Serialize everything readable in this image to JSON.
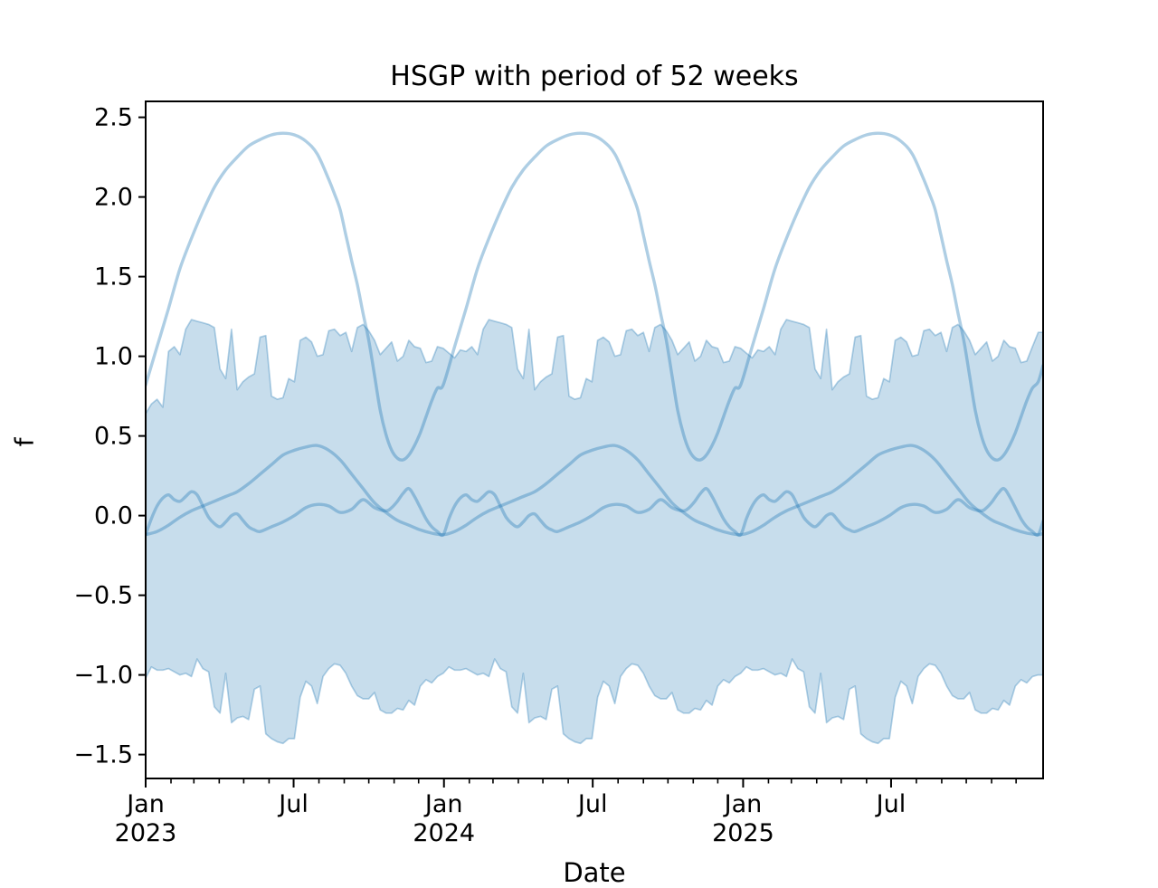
{
  "title": "HSGP with period of 52 weeks",
  "axes": {
    "xlabel": "Date",
    "ylabel": "f",
    "xlim_weeks": [
      0,
      156.86
    ],
    "ylim": [
      -1.65,
      2.6
    ],
    "grid": false,
    "legend": "none",
    "y_ticks": [
      {
        "value": 2.5,
        "label": "2.5"
      },
      {
        "value": 2.0,
        "label": "2.0"
      },
      {
        "value": 1.5,
        "label": "1.5"
      },
      {
        "value": 1.0,
        "label": "1.0"
      },
      {
        "value": 0.5,
        "label": "0.5"
      },
      {
        "value": 0.0,
        "label": "0.0"
      },
      {
        "value": -0.5,
        "label": "−0.5"
      },
      {
        "value": -1.0,
        "label": "−1.0"
      },
      {
        "value": -1.5,
        "label": "−1.5"
      }
    ],
    "x_major_ticks": [
      {
        "week": 0.0,
        "label": "Jan",
        "sublabel": "2023"
      },
      {
        "week": 25.86,
        "label": "Jul",
        "sublabel": ""
      },
      {
        "week": 52.14,
        "label": "Jan",
        "sublabel": "2024"
      },
      {
        "week": 78.14,
        "label": "Jul",
        "sublabel": ""
      },
      {
        "week": 104.43,
        "label": "Jan",
        "sublabel": "2025"
      },
      {
        "week": 130.29,
        "label": "Jul",
        "sublabel": ""
      }
    ],
    "x_minor_weeks": [
      4.43,
      8.43,
      12.86,
      17.14,
      21.57,
      30.29,
      34.71,
      39.0,
      43.43,
      47.71,
      56.57,
      60.71,
      65.14,
      69.43,
      73.86,
      82.57,
      87.0,
      91.29,
      95.71,
      100.0,
      108.86,
      112.86,
      117.29,
      121.57,
      126.0,
      134.71,
      139.14,
      143.43,
      147.86,
      152.14
    ]
  },
  "style": {
    "line_color": "#1f77b4",
    "line_alpha": 0.36,
    "line_width": 3.4,
    "band_fill_alpha": 0.25,
    "band_edge_alpha": 0.33,
    "band_edge_width": 1.7,
    "spine_color": "#000000",
    "spine_width": 2,
    "tick_color": "#000000",
    "text_color": "#000000",
    "background": "#ffffff"
  },
  "chart_data": {
    "type": "line",
    "title": "HSGP with period of 52 weeks",
    "xlabel": "Date",
    "ylabel": "f",
    "x_unit": "weeks_since_2023-01-01",
    "period_weeks": 52,
    "years": 3,
    "hdi_band": {
      "description": "weekly jagged credible-interval envelope, repeats yearly",
      "top_weeks_by_year": [
        [
          0.64,
          0.7,
          0.73,
          0.68,
          1.03,
          1.06,
          1.01,
          1.17,
          1.23,
          1.22,
          1.21,
          1.2,
          1.18,
          0.92,
          0.86,
          1.17,
          0.79,
          0.84,
          0.87,
          0.89,
          1.12,
          1.13,
          0.75,
          0.73,
          0.74,
          0.86,
          0.84,
          1.1,
          1.12,
          1.09,
          1.0,
          1.01,
          1.16,
          1.17,
          1.13,
          1.15,
          1.03,
          1.18,
          1.2,
          1.16,
          1.1,
          1.01,
          1.05,
          1.09,
          0.97,
          1.0,
          1.1,
          1.06,
          1.05,
          0.96,
          0.97,
          1.06
        ],
        [
          1.05,
          1.02,
          0.99,
          1.04,
          1.03,
          1.06,
          1.01,
          1.17,
          1.23,
          1.22,
          1.21,
          1.2,
          1.18,
          0.92,
          0.86,
          1.17,
          0.79,
          0.84,
          0.87,
          0.89,
          1.12,
          1.13,
          0.75,
          0.73,
          0.74,
          0.86,
          0.84,
          1.1,
          1.12,
          1.09,
          1.0,
          1.01,
          1.16,
          1.17,
          1.13,
          1.15,
          1.03,
          1.18,
          1.2,
          1.16,
          1.1,
          1.01,
          1.05,
          1.09,
          0.97,
          1.0,
          1.1,
          1.06,
          1.05,
          0.96,
          0.97,
          1.06
        ],
        [
          1.05,
          1.02,
          0.99,
          1.04,
          1.03,
          1.06,
          1.01,
          1.17,
          1.23,
          1.22,
          1.21,
          1.2,
          1.18,
          0.92,
          0.86,
          1.17,
          0.79,
          0.84,
          0.87,
          0.89,
          1.12,
          1.13,
          0.75,
          0.73,
          0.74,
          0.86,
          0.84,
          1.1,
          1.12,
          1.09,
          1.0,
          1.01,
          1.16,
          1.17,
          1.13,
          1.15,
          1.03,
          1.18,
          1.2,
          1.16,
          1.1,
          1.01,
          1.05,
          1.09,
          0.97,
          1.0,
          1.1,
          1.06,
          1.05,
          0.96,
          0.97,
          1.06,
          1.15
        ]
      ],
      "bottom_weeks_by_year": [
        [
          -1.02,
          -0.95,
          -0.97,
          -0.97,
          -0.96,
          -0.98,
          -1.0,
          -0.99,
          -1.01,
          -0.9,
          -0.96,
          -0.98,
          -1.2,
          -1.24,
          -0.99,
          -1.3,
          -1.27,
          -1.26,
          -1.28,
          -1.09,
          -1.07,
          -1.37,
          -1.4,
          -1.42,
          -1.43,
          -1.4,
          -1.4,
          -1.14,
          -1.04,
          -1.07,
          -1.18,
          -1.01,
          -0.96,
          -0.93,
          -0.94,
          -0.99,
          -1.07,
          -1.13,
          -1.15,
          -1.15,
          -1.11,
          -1.22,
          -1.24,
          -1.24,
          -1.21,
          -1.22,
          -1.16,
          -1.19,
          -1.07,
          -1.03,
          -1.05,
          -1.01
        ],
        [
          -0.99,
          -0.95,
          -0.97,
          -0.97,
          -0.96,
          -0.98,
          -1.0,
          -0.99,
          -1.01,
          -0.9,
          -0.96,
          -0.98,
          -1.2,
          -1.24,
          -0.99,
          -1.3,
          -1.27,
          -1.26,
          -1.28,
          -1.09,
          -1.07,
          -1.37,
          -1.4,
          -1.42,
          -1.43,
          -1.4,
          -1.4,
          -1.14,
          -1.04,
          -1.07,
          -1.18,
          -1.01,
          -0.96,
          -0.93,
          -0.94,
          -0.99,
          -1.07,
          -1.13,
          -1.15,
          -1.15,
          -1.11,
          -1.22,
          -1.24,
          -1.24,
          -1.21,
          -1.22,
          -1.16,
          -1.19,
          -1.07,
          -1.03,
          -1.05,
          -1.01
        ],
        [
          -0.99,
          -0.95,
          -0.97,
          -0.97,
          -0.96,
          -0.98,
          -1.0,
          -0.99,
          -1.01,
          -0.9,
          -0.96,
          -0.98,
          -1.2,
          -1.24,
          -0.99,
          -1.3,
          -1.27,
          -1.26,
          -1.28,
          -1.09,
          -1.07,
          -1.37,
          -1.4,
          -1.42,
          -1.43,
          -1.4,
          -1.4,
          -1.14,
          -1.04,
          -1.07,
          -1.18,
          -1.01,
          -0.96,
          -0.93,
          -0.94,
          -0.99,
          -1.07,
          -1.13,
          -1.15,
          -1.15,
          -1.11,
          -1.22,
          -1.24,
          -1.24,
          -1.21,
          -1.22,
          -1.16,
          -1.19,
          -1.07,
          -1.03,
          -1.05,
          -1.01,
          -1.0
        ]
      ]
    },
    "series": [
      {
        "name": "posterior_sample_large",
        "periodic": true,
        "pattern_week_value": [
          [
            0,
            0.82
          ],
          [
            2,
            1.06
          ],
          [
            4,
            1.3
          ],
          [
            6,
            1.55
          ],
          [
            8,
            1.74
          ],
          [
            10,
            1.91
          ],
          [
            12,
            2.06
          ],
          [
            14,
            2.17
          ],
          [
            16,
            2.25
          ],
          [
            18,
            2.32
          ],
          [
            20,
            2.36
          ],
          [
            22,
            2.39
          ],
          [
            24,
            2.4
          ],
          [
            26,
            2.39
          ],
          [
            28,
            2.35
          ],
          [
            30,
            2.27
          ],
          [
            32,
            2.11
          ],
          [
            33,
            2.02
          ],
          [
            34,
            1.92
          ],
          [
            35,
            1.76
          ],
          [
            36,
            1.6
          ],
          [
            37,
            1.45
          ],
          [
            38,
            1.27
          ],
          [
            39,
            1.1
          ],
          [
            40,
            0.88
          ],
          [
            41,
            0.66
          ],
          [
            42,
            0.51
          ],
          [
            43,
            0.41
          ],
          [
            44,
            0.36
          ],
          [
            45,
            0.35
          ],
          [
            46,
            0.38
          ],
          [
            47,
            0.44
          ],
          [
            48,
            0.52
          ],
          [
            49,
            0.62
          ],
          [
            50,
            0.72
          ],
          [
            51,
            0.8
          ],
          [
            52,
            0.84
          ]
        ]
      },
      {
        "name": "posterior_sample_medium",
        "periodic": true,
        "pattern_week_value": [
          [
            0,
            -0.12
          ],
          [
            2,
            -0.1
          ],
          [
            4,
            -0.06
          ],
          [
            6,
            -0.01
          ],
          [
            8,
            0.03
          ],
          [
            10,
            0.06
          ],
          [
            12,
            0.09
          ],
          [
            14,
            0.12
          ],
          [
            16,
            0.15
          ],
          [
            18,
            0.2
          ],
          [
            20,
            0.26
          ],
          [
            22,
            0.32
          ],
          [
            24,
            0.38
          ],
          [
            26,
            0.41
          ],
          [
            28,
            0.43
          ],
          [
            30,
            0.44
          ],
          [
            32,
            0.41
          ],
          [
            34,
            0.35
          ],
          [
            36,
            0.26
          ],
          [
            38,
            0.17
          ],
          [
            40,
            0.08
          ],
          [
            42,
            0.02
          ],
          [
            44,
            -0.03
          ],
          [
            46,
            -0.06
          ],
          [
            48,
            -0.09
          ],
          [
            50,
            -0.11
          ],
          [
            52,
            -0.12
          ]
        ]
      },
      {
        "name": "posterior_sample_wiggly",
        "periodic": true,
        "pattern_week_value": [
          [
            0,
            -0.12
          ],
          [
            1,
            -0.02
          ],
          [
            2,
            0.06
          ],
          [
            3,
            0.11
          ],
          [
            4,
            0.13
          ],
          [
            5,
            0.1
          ],
          [
            6,
            0.09
          ],
          [
            7,
            0.12
          ],
          [
            8,
            0.15
          ],
          [
            9,
            0.13
          ],
          [
            10,
            0.06
          ],
          [
            11,
            -0.01
          ],
          [
            12,
            -0.05
          ],
          [
            13,
            -0.07
          ],
          [
            14,
            -0.04
          ],
          [
            15,
            0.0
          ],
          [
            16,
            0.01
          ],
          [
            17,
            -0.03
          ],
          [
            18,
            -0.07
          ],
          [
            19,
            -0.09
          ],
          [
            20,
            -0.1
          ],
          [
            22,
            -0.07
          ],
          [
            24,
            -0.04
          ],
          [
            26,
            0.0
          ],
          [
            28,
            0.05
          ],
          [
            30,
            0.07
          ],
          [
            32,
            0.06
          ],
          [
            34,
            0.02
          ],
          [
            36,
            0.04
          ],
          [
            38,
            0.1
          ],
          [
            40,
            0.05
          ],
          [
            42,
            0.03
          ],
          [
            43,
            0.05
          ],
          [
            44,
            0.09
          ],
          [
            45,
            0.14
          ],
          [
            46,
            0.17
          ],
          [
            47,
            0.12
          ],
          [
            48,
            0.05
          ],
          [
            49,
            -0.02
          ],
          [
            50,
            -0.07
          ],
          [
            51,
            -0.1
          ],
          [
            52,
            -0.12
          ]
        ]
      }
    ]
  }
}
